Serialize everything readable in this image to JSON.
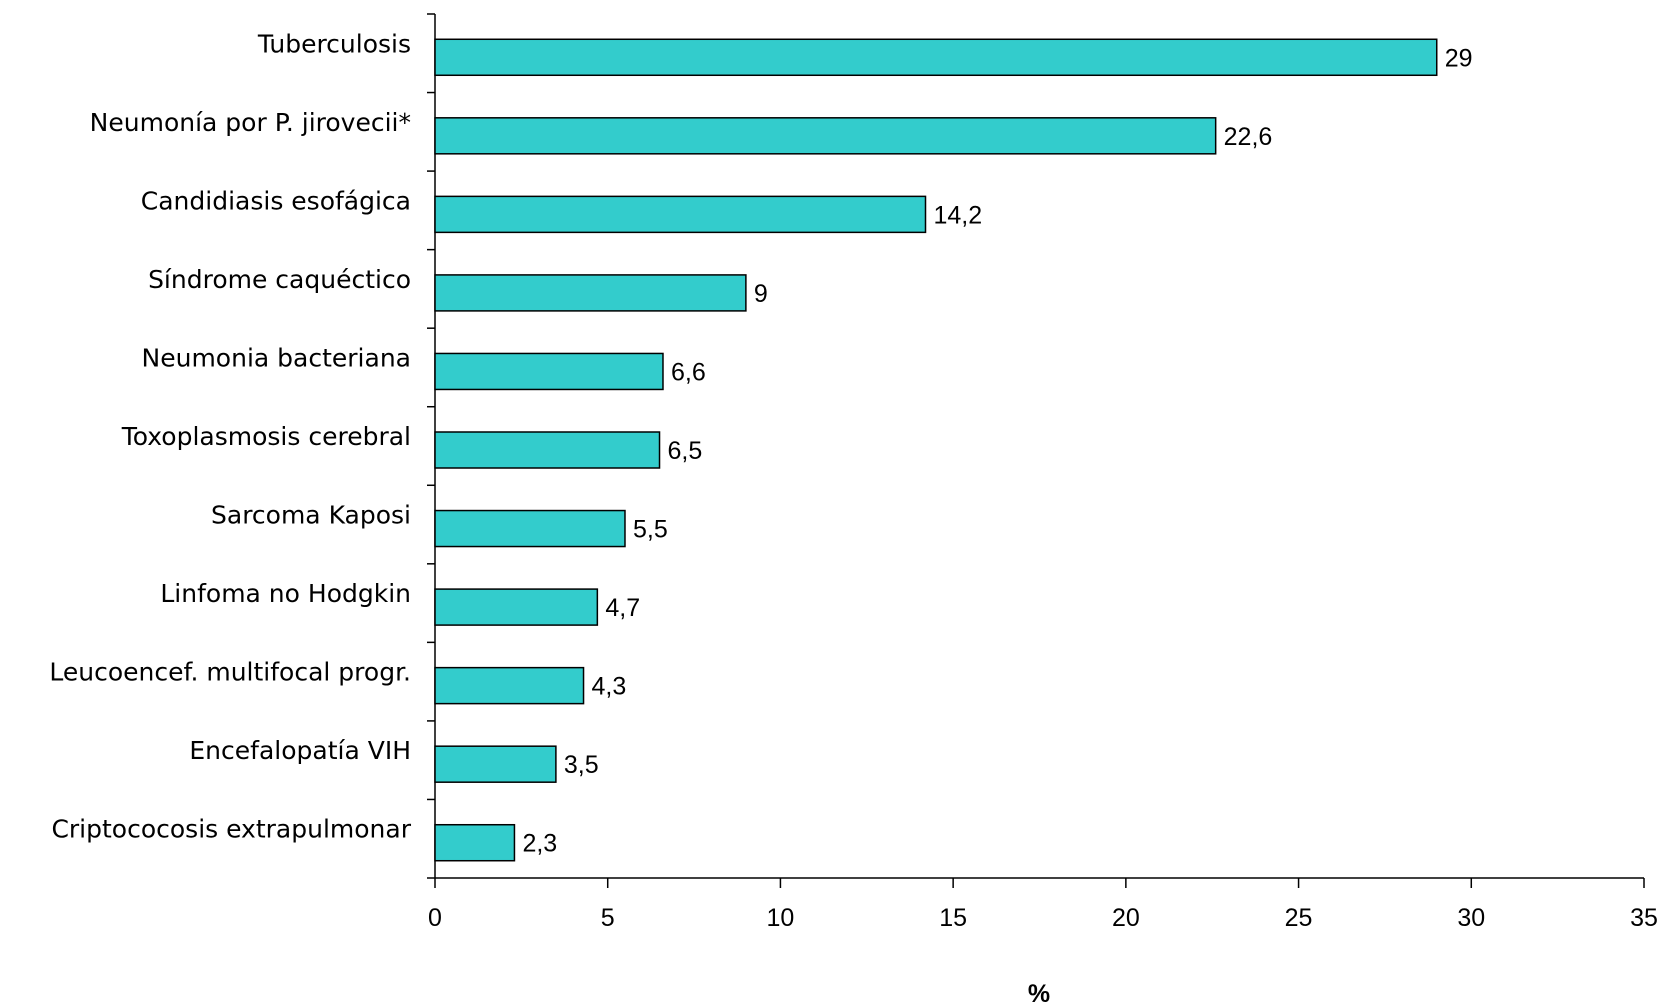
{
  "chart_data": {
    "type": "bar",
    "orientation": "horizontal",
    "categories": [
      "Tuberculosis",
      "Neumonía por P. jirovecii*",
      "Candidiasis esofágica",
      "Síndrome caquéctico",
      "Neumonia bacteriana",
      "Toxoplasmosis cerebral",
      "Sarcoma Kaposi",
      "Linfoma no Hodgkin",
      "Leucoencef. multifocal progr.",
      "Encefalopatía VIH",
      "Criptococosis extrapulmonar"
    ],
    "values": [
      29,
      22.6,
      14.2,
      9,
      6.6,
      6.5,
      5.5,
      4.7,
      4.3,
      3.5,
      2.3
    ],
    "value_labels": [
      "29",
      "22,6",
      "14,2",
      "9",
      "6,6",
      "6,5",
      "5,5",
      "4,7",
      "4,3",
      "3,5",
      "2,3"
    ],
    "title": "",
    "xlabel": "%",
    "ylabel": "",
    "xlim": [
      0,
      35
    ],
    "xticks": [
      0,
      5,
      10,
      15,
      20,
      25,
      30,
      35
    ],
    "grid": false,
    "legend": "none",
    "bar_color": "#33CCCC",
    "bar_stroke": "#000000"
  }
}
